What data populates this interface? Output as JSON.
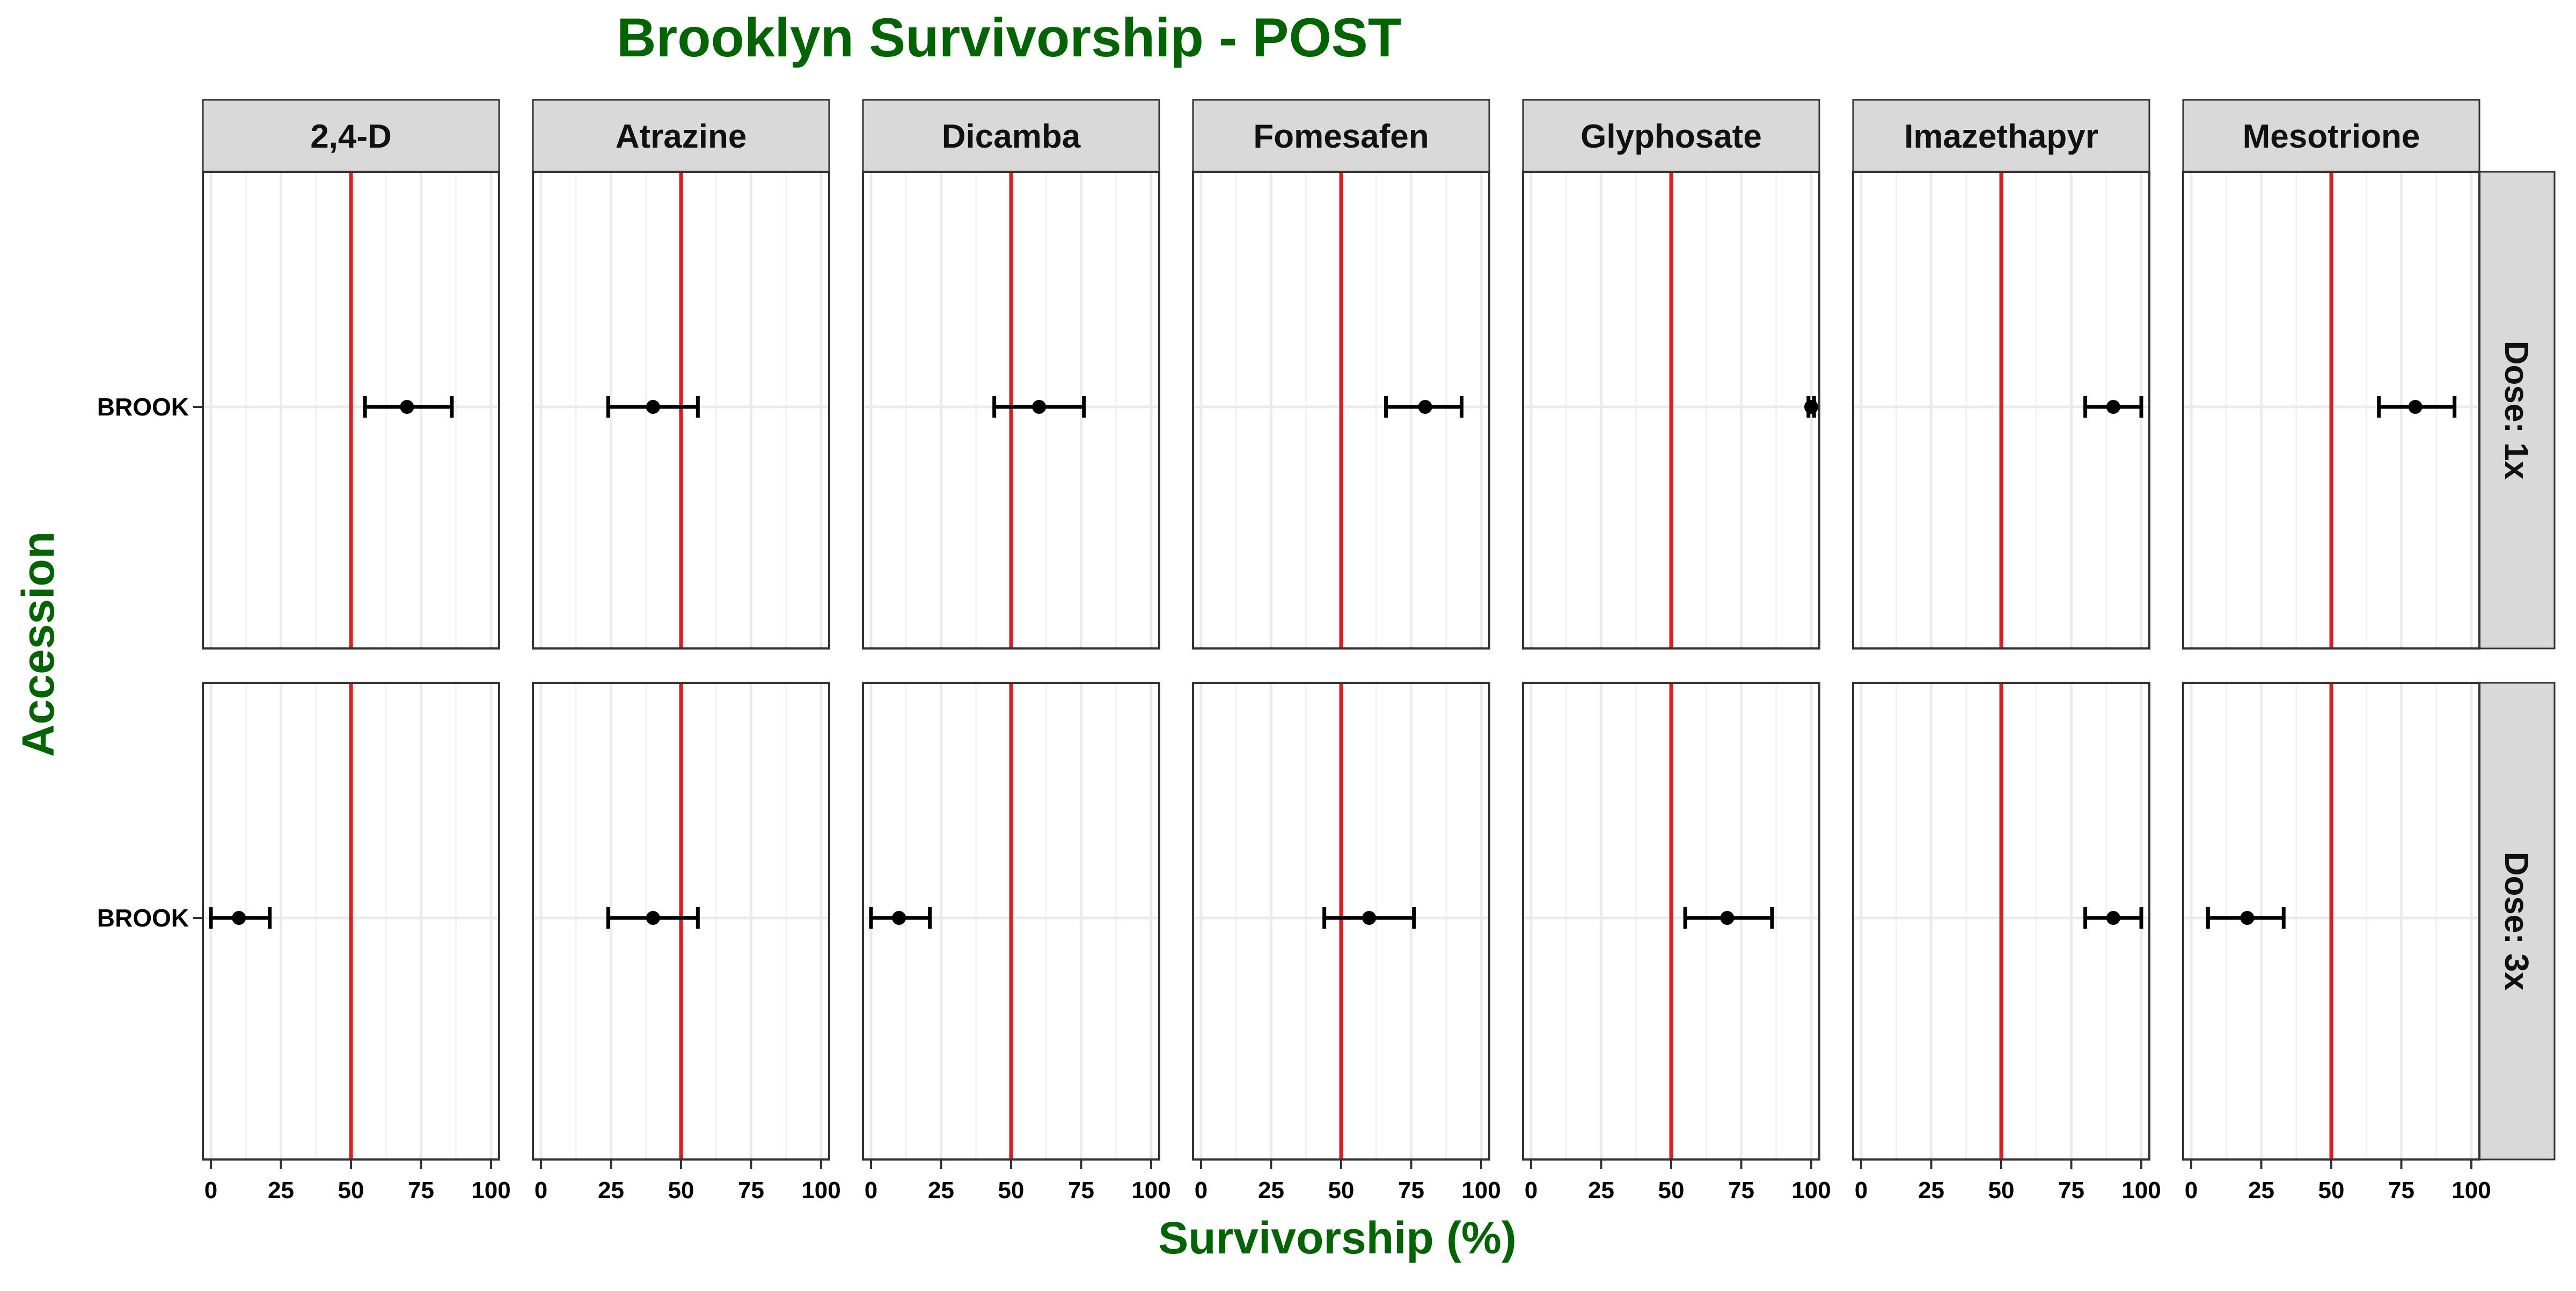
{
  "chart_data": {
    "type": "scatter",
    "subtype": "faceted point with error bars",
    "title": "Brooklyn Survivorship - POST",
    "xlabel": "Survivorship (%)",
    "ylabel": "Accession",
    "xlim": [
      0,
      100
    ],
    "xticks": [
      "0",
      "25",
      "50",
      "75",
      "100"
    ],
    "reference_line": {
      "x": 50,
      "color": "#e41a1c"
    },
    "grid": true,
    "legend": "none",
    "colors": {
      "title": "#006400",
      "strip_fill": "#d9d9d9",
      "point": "#000000",
      "reference_line": "#e41a1c",
      "grid": "#ebebeb"
    },
    "columns": [
      "2,4-D",
      "Atrazine",
      "Dicamba",
      "Fomesafen",
      "Glyphosate",
      "Imazethapyr",
      "Mesotrione"
    ],
    "rows": [
      "Dose: 1x",
      "Dose: 3x"
    ],
    "categories": [
      "BROOK"
    ],
    "panels": [
      {
        "herbicide": "2,4-D",
        "dose": "Dose: 1x",
        "accession": "BROOK",
        "value": 70,
        "lower": 55,
        "upper": 86
      },
      {
        "herbicide": "Atrazine",
        "dose": "Dose: 1x",
        "accession": "BROOK",
        "value": 40,
        "lower": 24,
        "upper": 56
      },
      {
        "herbicide": "Dicamba",
        "dose": "Dose: 1x",
        "accession": "BROOK",
        "value": 60,
        "lower": 44,
        "upper": 76
      },
      {
        "herbicide": "Fomesafen",
        "dose": "Dose: 1x",
        "accession": "BROOK",
        "value": 80,
        "lower": 66,
        "upper": 93
      },
      {
        "herbicide": "Glyphosate",
        "dose": "Dose: 1x",
        "accession": "BROOK",
        "value": 100,
        "lower": 99,
        "upper": 101
      },
      {
        "herbicide": "Imazethapyr",
        "dose": "Dose: 1x",
        "accession": "BROOK",
        "value": 90,
        "lower": 80,
        "upper": 100
      },
      {
        "herbicide": "Mesotrione",
        "dose": "Dose: 1x",
        "accession": "BROOK",
        "value": 80,
        "lower": 67,
        "upper": 94
      },
      {
        "herbicide": "2,4-D",
        "dose": "Dose: 3x",
        "accession": "BROOK",
        "value": 10,
        "lower": 0,
        "upper": 21
      },
      {
        "herbicide": "Atrazine",
        "dose": "Dose: 3x",
        "accession": "BROOK",
        "value": 40,
        "lower": 24,
        "upper": 56
      },
      {
        "herbicide": "Dicamba",
        "dose": "Dose: 3x",
        "accession": "BROOK",
        "value": 10,
        "lower": 0,
        "upper": 21
      },
      {
        "herbicide": "Fomesafen",
        "dose": "Dose: 3x",
        "accession": "BROOK",
        "value": 60,
        "lower": 44,
        "upper": 76
      },
      {
        "herbicide": "Glyphosate",
        "dose": "Dose: 3x",
        "accession": "BROOK",
        "value": 70,
        "lower": 55,
        "upper": 86
      },
      {
        "herbicide": "Imazethapyr",
        "dose": "Dose: 3x",
        "accession": "BROOK",
        "value": 90,
        "lower": 80,
        "upper": 100
      },
      {
        "herbicide": "Mesotrione",
        "dose": "Dose: 3x",
        "accession": "BROOK",
        "value": 20,
        "lower": 6,
        "upper": 33
      }
    ]
  }
}
